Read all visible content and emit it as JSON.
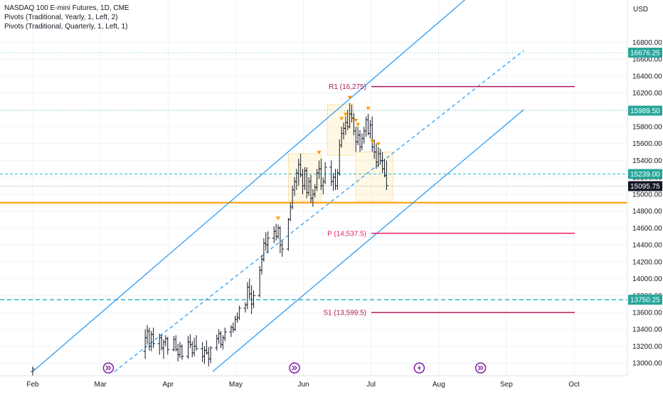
{
  "chart_data": {
    "type": "ohlc",
    "title": "NASDAQ 100 E-mini Futures, 1D, CME",
    "indicators": [
      "Pivots (Traditional, Yearly, 1, Left, 2)",
      "Pivots (Traditional, Quarterly, 1, Left, 1)"
    ],
    "currency": "USD",
    "ylim": [
      12850,
      17300
    ],
    "y_ticks": [
      13000,
      13200,
      13400,
      13600,
      13800,
      14000,
      14200,
      14400,
      14600,
      14800,
      15000,
      15200,
      15400,
      15600,
      15800,
      16000,
      16200,
      16400,
      16600,
      16800
    ],
    "y_tick_labels": [
      "13000.00",
      "13200.00",
      "13400.00",
      "13600.00",
      "13800.00",
      "14000.00",
      "14200.00",
      "14400.00",
      "14600.00",
      "14800.00",
      "15000.00",
      "15200.00",
      "15400.00",
      "15600.00",
      "15800.00",
      "16000.00",
      "16200.00",
      "16400.00",
      "16600.00",
      "16800.00"
    ],
    "x_tick_labels": [
      "Feb",
      "Mar",
      "Apr",
      "May",
      "Jun",
      "Jul",
      "Aug",
      "Sep",
      "Oct"
    ],
    "price_badges": [
      {
        "label": "16676.25",
        "value": 16676.25,
        "color": "#26a69a"
      },
      {
        "label": "15989.50",
        "value": 15989.5,
        "color": "#26a69a"
      },
      {
        "label": "15239.00",
        "value": 15239.0,
        "color": "#26a69a"
      },
      {
        "label": "15095.75",
        "value": 15095.75,
        "color": "#131722"
      },
      {
        "label": "13750.25",
        "value": 13750.25,
        "color": "#26a69a"
      }
    ],
    "pivot_levels": [
      {
        "label": "R1 (16,275)",
        "value": 16275,
        "color": "#b2175b"
      },
      {
        "label": "P (14,537.5)",
        "value": 14537.5,
        "color": "#e91e63"
      },
      {
        "label": "S1 (13,599.5)",
        "value": 13599.5,
        "color": "#b2175b"
      }
    ],
    "support_level": 14900,
    "dotted_levels": [
      16676.25,
      15989.5
    ],
    "dashed_levels": [
      15239.0,
      13750.25
    ],
    "channel": {
      "upper": {
        "start": {
          "day": 0,
          "price": 12900
        },
        "end": {
          "day": 240,
          "price": 17900
        }
      },
      "mid": {
        "start": {
          "day": 40,
          "price": 12900
        },
        "end": {
          "day": 240,
          "price": 16700
        }
      },
      "lower": {
        "start": {
          "day": 88,
          "price": 12900
        },
        "end": {
          "day": 240,
          "price": 16000
        }
      }
    },
    "event_markers": [
      {
        "day": 37,
        "icon": "double-arrow-icon"
      },
      {
        "day": 128,
        "icon": "double-arrow-icon"
      },
      {
        "day": 189,
        "icon": "lightning-icon"
      },
      {
        "day": 219,
        "icon": "double-arrow-icon"
      }
    ],
    "bars": [
      [
        0,
        12900,
        12960,
        12850,
        12930
      ],
      [
        55,
        13140,
        13400,
        13050,
        13300
      ],
      [
        56,
        13300,
        13450,
        13220,
        13380
      ],
      [
        57,
        13380,
        13420,
        13150,
        13200
      ],
      [
        58,
        13200,
        13380,
        13140,
        13340
      ],
      [
        59,
        13340,
        13420,
        13180,
        13230
      ],
      [
        62,
        13230,
        13350,
        13100,
        13300
      ],
      [
        63,
        13300,
        13340,
        13150,
        13180
      ],
      [
        64,
        13180,
        13280,
        13050,
        13250
      ],
      [
        65,
        13250,
        13330,
        13200,
        13290
      ],
      [
        66,
        13290,
        13310,
        13100,
        13160
      ],
      [
        69,
        13160,
        13320,
        13140,
        13280
      ],
      [
        70,
        13280,
        13330,
        13140,
        13160
      ],
      [
        71,
        13160,
        13230,
        13020,
        13100
      ],
      [
        72,
        13100,
        13250,
        13060,
        13200
      ],
      [
        73,
        13200,
        13220,
        13040,
        13080
      ],
      [
        76,
        13080,
        13320,
        13050,
        13250
      ],
      [
        77,
        13250,
        13340,
        13180,
        13220
      ],
      [
        78,
        13220,
        13260,
        13070,
        13120
      ],
      [
        79,
        13120,
        13300,
        13080,
        13200
      ],
      [
        80,
        13200,
        13330,
        13150,
        13170
      ],
      [
        83,
        13170,
        13250,
        13010,
        13080
      ],
      [
        84,
        13080,
        13200,
        12990,
        13150
      ],
      [
        85,
        13150,
        13270,
        13100,
        13120
      ],
      [
        86,
        13120,
        13190,
        12960,
        13050
      ],
      [
        87,
        13050,
        13200,
        13000,
        13180
      ],
      [
        90,
        13180,
        13340,
        13150,
        13290
      ],
      [
        91,
        13290,
        13400,
        13230,
        13350
      ],
      [
        92,
        13350,
        13380,
        13180,
        13220
      ],
      [
        93,
        13220,
        13330,
        13160,
        13300
      ],
      [
        94,
        13300,
        13420,
        13260,
        13370
      ],
      [
        97,
        13370,
        13450,
        13310,
        13420
      ],
      [
        98,
        13420,
        13480,
        13360,
        13400
      ],
      [
        99,
        13400,
        13560,
        13380,
        13520
      ],
      [
        100,
        13520,
        13600,
        13480,
        13540
      ],
      [
        101,
        13540,
        13680,
        13510,
        13650
      ],
      [
        104,
        13650,
        13720,
        13600,
        13690
      ],
      [
        105,
        13690,
        13960,
        13640,
        13900
      ],
      [
        106,
        13900,
        14000,
        13760,
        13820
      ],
      [
        107,
        13820,
        13920,
        13580,
        13700
      ],
      [
        108,
        13700,
        13860,
        13650,
        13800
      ],
      [
        111,
        13800,
        14150,
        13780,
        14100
      ],
      [
        112,
        14100,
        14280,
        14050,
        14230
      ],
      [
        113,
        14230,
        14480,
        14200,
        14420
      ],
      [
        114,
        14420,
        14550,
        14330,
        14400
      ],
      [
        115,
        14400,
        14560,
        14300,
        14480
      ],
      [
        118,
        14480,
        14620,
        14420,
        14560
      ],
      [
        119,
        14560,
        14650,
        14450,
        14500
      ],
      [
        120,
        14500,
        14640,
        14470,
        14600
      ],
      [
        121,
        14600,
        14620,
        14300,
        14400
      ],
      [
        122,
        14400,
        14450,
        14260,
        14350
      ],
      [
        125,
        14350,
        14720,
        14330,
        14700
      ],
      [
        126,
        14700,
        14900,
        14680,
        14850
      ],
      [
        127,
        14850,
        15100,
        14820,
        15050
      ],
      [
        128,
        15050,
        15200,
        14980,
        15150
      ],
      [
        129,
        15150,
        15300,
        15050,
        15250
      ],
      [
        130,
        15250,
        15420,
        15100,
        15350
      ],
      [
        131,
        15350,
        15480,
        15200,
        15230
      ],
      [
        132,
        15230,
        15300,
        15000,
        15100
      ],
      [
        133,
        15100,
        15320,
        15050,
        15280
      ],
      [
        134,
        15280,
        15320,
        14950,
        15020
      ],
      [
        135,
        15020,
        15200,
        14980,
        15150
      ],
      [
        136,
        15150,
        15230,
        14900,
        14950
      ],
      [
        137,
        14950,
        15060,
        14850,
        15000
      ],
      [
        138,
        15000,
        15120,
        14960,
        15080
      ],
      [
        139,
        15080,
        15300,
        15040,
        15250
      ],
      [
        140,
        15250,
        15400,
        15180,
        15300
      ],
      [
        141,
        15300,
        15420,
        15050,
        15100
      ],
      [
        142,
        15100,
        15200,
        15000,
        15150
      ],
      [
        143,
        15150,
        15380,
        15120,
        15320
      ],
      [
        146,
        15320,
        15400,
        15100,
        15150
      ],
      [
        147,
        15150,
        15250,
        15040,
        15200
      ],
      [
        148,
        15200,
        15300,
        15050,
        15100
      ],
      [
        149,
        15100,
        15300,
        15050,
        15250
      ],
      [
        150,
        15250,
        15650,
        15220,
        15580
      ],
      [
        151,
        15580,
        15800,
        15550,
        15720
      ],
      [
        152,
        15720,
        15850,
        15650,
        15780
      ],
      [
        153,
        15780,
        15920,
        15700,
        15850
      ],
      [
        154,
        15850,
        16000,
        15760,
        15800
      ],
      [
        155,
        15800,
        16080,
        15780,
        15950
      ],
      [
        156,
        15950,
        16060,
        15850,
        15900
      ],
      [
        157,
        15900,
        15960,
        15700,
        15750
      ],
      [
        158,
        15750,
        15800,
        15500,
        15620
      ],
      [
        159,
        15620,
        15800,
        15580,
        15700
      ],
      [
        160,
        15700,
        15760,
        15500,
        15560
      ],
      [
        161,
        15560,
        15720,
        15520,
        15660
      ],
      [
        162,
        15660,
        15800,
        15600,
        15750
      ],
      [
        163,
        15750,
        15920,
        15680,
        15880
      ],
      [
        164,
        15880,
        15950,
        15700,
        15720
      ],
      [
        165,
        15720,
        15880,
        15660,
        15820
      ],
      [
        166,
        15820,
        15920,
        15500,
        15560
      ],
      [
        167,
        15560,
        15650,
        15420,
        15500
      ],
      [
        168,
        15500,
        15600,
        15300,
        15380
      ],
      [
        169,
        15380,
        15560,
        15320,
        15480
      ],
      [
        170,
        15480,
        15540,
        15350,
        15400
      ],
      [
        171,
        15400,
        15500,
        15250,
        15300
      ],
      [
        172,
        15300,
        15420,
        15200,
        15220
      ],
      [
        173,
        15220,
        15400,
        15050,
        15100
      ]
    ],
    "sell_signals": [
      {
        "day": 120,
        "price": 14650
      },
      {
        "day": 140,
        "price": 15430
      },
      {
        "day": 151,
        "price": 15830
      },
      {
        "day": 153,
        "price": 15880
      },
      {
        "day": 155,
        "price": 16080
      },
      {
        "day": 158,
        "price": 15810
      },
      {
        "day": 159,
        "price": 15760
      },
      {
        "day": 164,
        "price": 15950
      },
      {
        "day": 166,
        "price": 15560
      },
      {
        "day": 169,
        "price": 15530
      }
    ],
    "consolidation_boxes": [
      {
        "day_start": 125,
        "day_end": 141,
        "price_low": 14920,
        "price_high": 15480
      },
      {
        "day_start": 144,
        "day_end": 157,
        "price_low": 15460,
        "price_high": 16060
      },
      {
        "day_start": 158,
        "day_end": 176,
        "price_low": 14920,
        "price_high": 15500
      }
    ]
  }
}
